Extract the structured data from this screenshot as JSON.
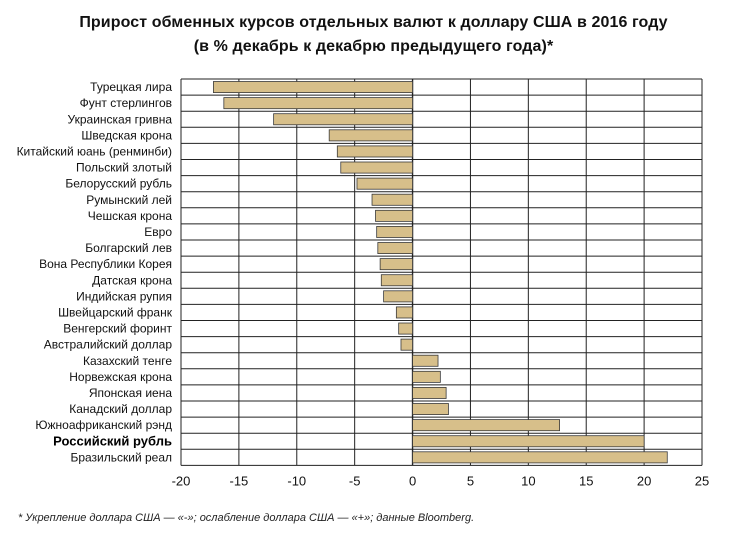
{
  "title": "Прирост обменных курсов отдельных валют к доллару США в 2016 году",
  "subtitle": "(в % декабрь к декабрю предыдущего года)*",
  "footnote": "* Укрепление доллара США — «-»; ослабление доллара США — «+»; данные Bloomberg.",
  "colors": {
    "bar": "#d7bf8a",
    "bar_stroke": "#3a3a3a",
    "grid": "#222222"
  },
  "chart_data": {
    "type": "bar",
    "orientation": "horizontal",
    "categories": [
      "Турецкая лира",
      "Фунт стерлингов",
      "Украинская гривна",
      "Шведская крона",
      "Китайский юань (ренминби)",
      "Польский злотый",
      "Белорусский рубль",
      "Румынский лей",
      "Чешская крона",
      "Евро",
      "Болгарский лев",
      "Вона Республики Корея",
      "Датская крона",
      "Индийская рупия",
      "Швейцарский франк",
      "Венгерский форинт",
      "Австралийский доллар",
      "Казахский тенге",
      "Норвежская крона",
      "Японская иена",
      "Канадский доллар",
      "Южноафриканский рэнд",
      "Российский рубль",
      "Бразильский реал"
    ],
    "values": [
      -17.2,
      -16.3,
      -12.0,
      -7.2,
      -6.5,
      -6.2,
      -4.8,
      -3.5,
      -3.2,
      -3.1,
      -3.0,
      -2.8,
      -2.7,
      -2.5,
      -1.4,
      -1.2,
      -1.0,
      2.2,
      2.4,
      2.9,
      3.1,
      12.7,
      20.0,
      22.0
    ],
    "highlight": [
      "Российский рубль"
    ],
    "xlim": [
      -20,
      25
    ],
    "xticks": [
      -20,
      -15,
      -10,
      -5,
      0,
      5,
      10,
      15,
      20,
      25
    ],
    "grid": true
  }
}
